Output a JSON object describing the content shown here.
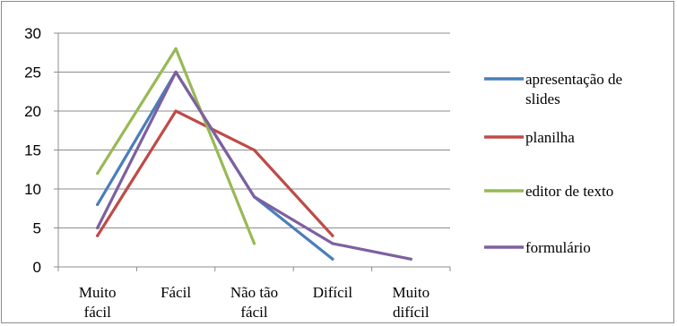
{
  "chart_data": {
    "type": "line",
    "title": "",
    "xlabel": "",
    "ylabel": "",
    "ylim": [
      0,
      30
    ],
    "yticks": [
      0,
      5,
      10,
      15,
      20,
      25,
      30
    ],
    "grid": "horizontal",
    "legend_position": "right",
    "categories": [
      [
        "Muito",
        "fácil"
      ],
      [
        "Fácil"
      ],
      [
        "Não tão",
        "fácil"
      ],
      [
        "Difícil"
      ],
      [
        "Muito",
        "difícil"
      ]
    ],
    "series": [
      {
        "name": [
          "apresentação de",
          "slides"
        ],
        "color": "#4a7ebb",
        "values": [
          8,
          25,
          9,
          1,
          null
        ]
      },
      {
        "name": [
          "planilha"
        ],
        "color": "#be4b48",
        "values": [
          4,
          20,
          15,
          4,
          null
        ]
      },
      {
        "name": [
          "editor de texto"
        ],
        "color": "#98b954",
        "values": [
          12,
          28,
          3,
          null,
          null
        ]
      },
      {
        "name": [
          "formulário"
        ],
        "color": "#7d60a0",
        "values": [
          5,
          25,
          9,
          3,
          1
        ]
      }
    ]
  }
}
